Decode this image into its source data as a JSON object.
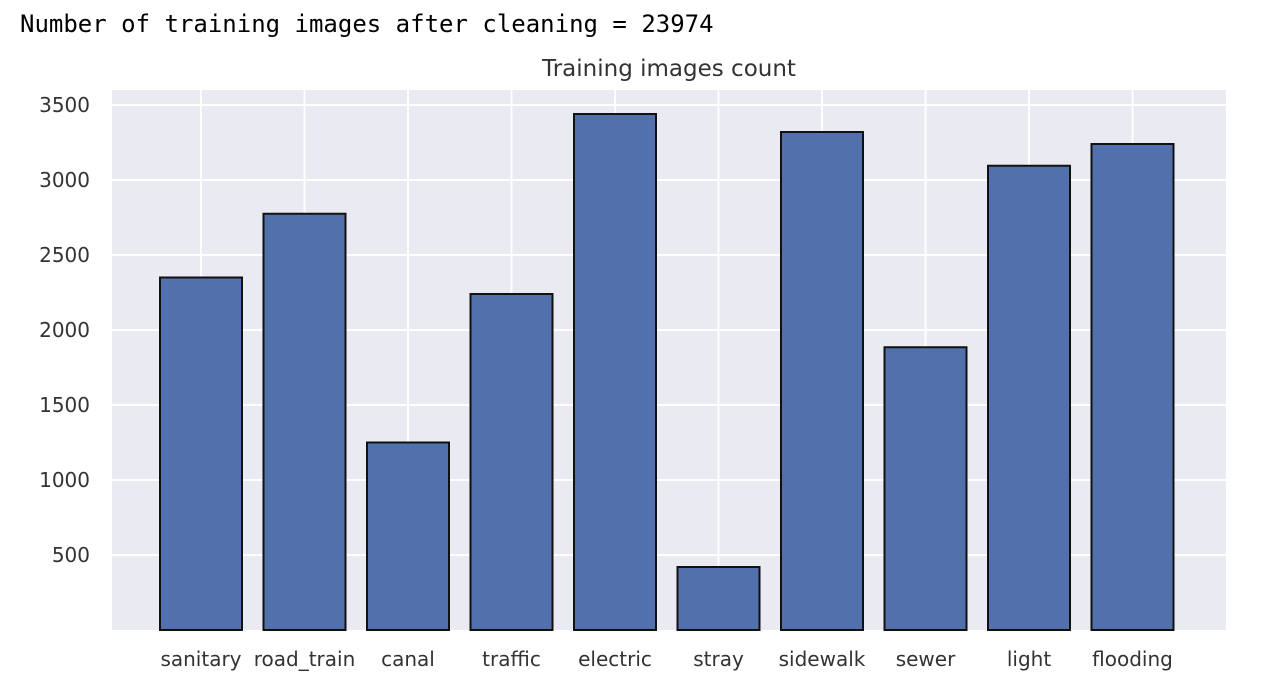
{
  "output": {
    "text": "Number of training images after cleaning = 23974"
  },
  "colors": {
    "plot_background": "#eaeaf2",
    "grid": "#ffffff",
    "bar_fill": "#5270ab",
    "bar_edge": "#111111",
    "text": "#333333"
  },
  "chart_data": {
    "type": "bar",
    "title": "Training images count",
    "xlabel": "",
    "ylabel": "",
    "categories": [
      "sanitary",
      "road_train",
      "canal",
      "traffic",
      "electric",
      "stray",
      "sidewalk",
      "sewer",
      "light",
      "flooding"
    ],
    "values": [
      2350,
      2775,
      1250,
      2240,
      3440,
      420,
      3320,
      1885,
      3095,
      3240
    ],
    "ylim": [
      0,
      3600
    ],
    "yticks": [
      500,
      1000,
      1500,
      2000,
      2500,
      3000,
      3500
    ],
    "grid": true
  }
}
